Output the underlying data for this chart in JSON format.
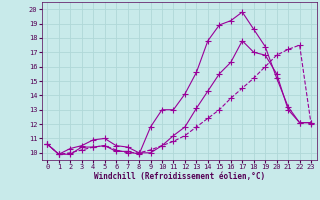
{
  "xlabel": "Windchill (Refroidissement éolien,°C)",
  "background_color": "#c8eaea",
  "grid_color": "#b0d8d8",
  "line_color": "#990099",
  "xlim": [
    -0.5,
    23.5
  ],
  "ylim": [
    9.5,
    20.5
  ],
  "xticks": [
    0,
    1,
    2,
    3,
    4,
    5,
    6,
    7,
    8,
    9,
    10,
    11,
    12,
    13,
    14,
    15,
    16,
    17,
    18,
    19,
    20,
    21,
    22,
    23
  ],
  "yticks": [
    10,
    11,
    12,
    13,
    14,
    15,
    16,
    17,
    18,
    19,
    20
  ],
  "line1_x": [
    0,
    1,
    2,
    3,
    4,
    5,
    6,
    7,
    8,
    9,
    10,
    11,
    12,
    13,
    14,
    15,
    16,
    17,
    18,
    19,
    20,
    21,
    22,
    23
  ],
  "line1_y": [
    10.6,
    9.9,
    9.9,
    10.4,
    10.4,
    10.5,
    10.1,
    10.1,
    9.9,
    11.8,
    13.0,
    13.0,
    14.1,
    15.6,
    17.8,
    18.9,
    19.2,
    19.8,
    18.6,
    17.4,
    15.2,
    13.2,
    12.1,
    12.1
  ],
  "line2_x": [
    0,
    1,
    2,
    3,
    4,
    5,
    6,
    7,
    8,
    9,
    10,
    11,
    12,
    13,
    14,
    15,
    16,
    17,
    18,
    19,
    20,
    21,
    22,
    23
  ],
  "line2_y": [
    10.6,
    9.9,
    10.3,
    10.5,
    10.9,
    11.0,
    10.5,
    10.4,
    10.0,
    10.0,
    10.5,
    11.2,
    11.8,
    13.1,
    14.3,
    15.5,
    16.3,
    17.8,
    17.0,
    16.8,
    15.5,
    13.0,
    12.1,
    12.1
  ],
  "line3_x": [
    0,
    1,
    2,
    3,
    4,
    5,
    6,
    7,
    8,
    9,
    10,
    11,
    12,
    13,
    14,
    15,
    16,
    17,
    18,
    19,
    20,
    21,
    22,
    23
  ],
  "line3_y": [
    10.6,
    9.9,
    10.0,
    10.2,
    10.4,
    10.5,
    10.2,
    10.0,
    10.0,
    10.2,
    10.5,
    10.8,
    11.2,
    11.8,
    12.4,
    13.0,
    13.8,
    14.5,
    15.2,
    16.0,
    16.8,
    17.2,
    17.5,
    12.0
  ],
  "marker": "+",
  "marker_size": 4,
  "line_width": 0.8,
  "tick_fontsize": 5,
  "xlabel_fontsize": 5.5
}
